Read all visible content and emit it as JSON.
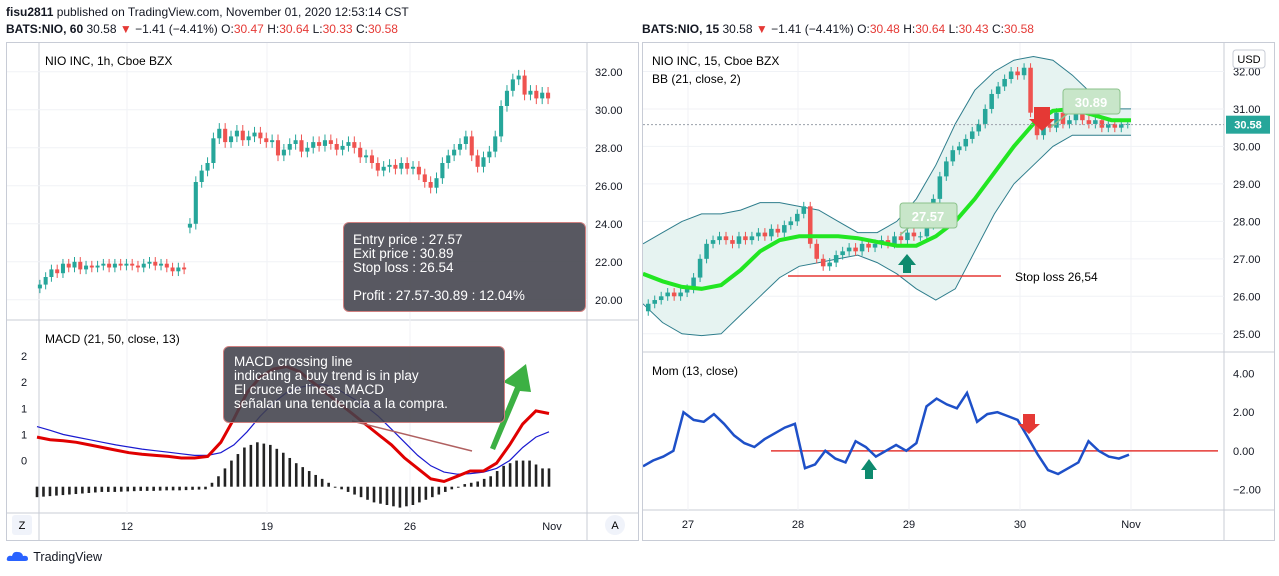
{
  "publish": {
    "user": "fisu2811",
    "text": " published on TradingView.com, November 01, 2020 12:53:14 CST"
  },
  "left": {
    "symbol_line": {
      "sym": "BATS:NIO, 60",
      "last": "30.58",
      "chg": "−1.41 (−4.41%)",
      "o": "30.47",
      "h": "30.64",
      "l": "30.33",
      "c": "30.58"
    },
    "title": "NIO INC, 1h, Cboe BZX",
    "price_axis": [
      "32.00",
      "30.00",
      "28.00",
      "26.00",
      "24.00",
      "22.00",
      "20.00"
    ],
    "macd_title": "MACD (21, 50, close, 13)",
    "macd_axis": [
      "2",
      "2",
      "1",
      "1",
      "0"
    ],
    "time_axis": [
      "12",
      "19",
      "26",
      "Nov"
    ],
    "corner_left": "Z",
    "corner_right": "A",
    "trade_box": {
      "entry": "Entry price : 27.57",
      "exit": "Exit price : 30.89",
      "stop": "Stop loss : 26.54",
      "profit": "Profit : 27.57-30.89 : 12.04%"
    },
    "macd_note": [
      "MACD crossing line",
      "indicating a buy trend is in play",
      "El cruce de lineas MACD",
      "señalan una tendencia a la compra."
    ]
  },
  "right": {
    "symbol_line": {
      "sym": "BATS:NIO, 15",
      "last": "30.58",
      "chg": "−1.41 (−4.41%)",
      "o": "30.48",
      "h": "30.64",
      "l": "30.43",
      "c": "30.58"
    },
    "title": "NIO INC, 15, Cboe BZX",
    "bb_title": "BB (21, close, 2)",
    "currency": "USD",
    "price_axis": [
      "32.00",
      "31.00",
      "30.00",
      "29.00",
      "28.00",
      "27.00",
      "26.00",
      "25.00"
    ],
    "last_price_tag": "30.58",
    "entry_label": "27.57",
    "exit_label": "30.89",
    "stop_label": "Stop loss  26,54",
    "mom_title": "Mom (13, close)",
    "mom_axis": [
      "4.00",
      "2.00",
      "0.00",
      "−2.00"
    ],
    "time_axis": [
      "27",
      "28",
      "29",
      "30",
      "Nov"
    ]
  },
  "footer": {
    "brand": "TradingView"
  },
  "colors": {
    "up": "#26a69a",
    "down": "#ef5350",
    "bb_mid": "#22e622",
    "bb_band": "#2e7d8c",
    "bb_fill": "#e6f3f1",
    "mom": "#1e50c8",
    "macd": "#e00000",
    "signal": "#1a1ad0",
    "stop": "#e53935",
    "label_green": "#c8e6c9",
    "arrow_up": "#0e8a6e",
    "arrow_down": "#e53935",
    "arrow_green": "#3cb043"
  },
  "chart_data": [
    {
      "type": "candlestick",
      "title": "NIO INC, 1h, Cboe BZX",
      "ylim": [
        19.2,
        33.2
      ],
      "x_ticks": [
        "12",
        "19",
        "26",
        "Nov"
      ],
      "closes": [
        20.8,
        21.2,
        21.6,
        21.4,
        21.9,
        21.7,
        22.0,
        21.6,
        21.8,
        21.7,
        21.8,
        21.9,
        21.7,
        21.9,
        21.8,
        21.9,
        21.8,
        21.7,
        21.9,
        22.0,
        21.8,
        21.9,
        21.7,
        21.5,
        21.7,
        21.6,
        24.0,
        26.2,
        26.8,
        27.2,
        28.5,
        29.0,
        28.3,
        28.6,
        28.9,
        28.4,
        28.6,
        28.8,
        28.5,
        28.3,
        28.4,
        27.6,
        27.9,
        28.2,
        28.4,
        27.8,
        28.0,
        28.3,
        28.1,
        28.4,
        28.2,
        27.9,
        28.1,
        28.3,
        28.0,
        27.5,
        27.6,
        27.2,
        26.8,
        27.0,
        27.1,
        26.9,
        27.2,
        26.9,
        27.0,
        26.6,
        26.2,
        25.9,
        26.4,
        27.2,
        27.6,
        27.9,
        28.2,
        28.6,
        27.6,
        27.0,
        27.5,
        27.8,
        28.6,
        30.2,
        31.0,
        31.6,
        31.8,
        30.8,
        31.0,
        30.6,
        30.9,
        30.6
      ],
      "series": [
        {
          "name": "MACD",
          "color": "#e00000",
          "values": [
            0.95,
            0.9,
            0.88,
            0.85,
            0.8,
            0.75,
            0.7,
            0.65,
            0.62,
            0.6,
            0.58,
            0.55,
            0.55,
            0.58,
            0.85,
            1.3,
            1.8,
            2.1,
            2.25,
            2.3,
            2.2,
            2.0,
            1.8,
            1.6,
            1.4,
            1.2,
            1.0,
            0.8,
            0.55,
            0.35,
            0.15,
            0.1,
            0.2,
            0.3,
            0.3,
            0.45,
            0.8,
            1.2,
            1.45,
            1.4
          ]
        },
        {
          "name": "Signal",
          "color": "#1a1ad0",
          "values": [
            1.15,
            1.08,
            1.0,
            0.95,
            0.9,
            0.85,
            0.8,
            0.76,
            0.72,
            0.69,
            0.66,
            0.63,
            0.6,
            0.6,
            0.65,
            0.8,
            1.05,
            1.35,
            1.6,
            1.8,
            1.9,
            1.95,
            1.95,
            1.85,
            1.7,
            1.55,
            1.35,
            1.1,
            0.85,
            0.6,
            0.4,
            0.28,
            0.24,
            0.25,
            0.28,
            0.35,
            0.5,
            0.75,
            0.95,
            1.05
          ]
        },
        {
          "name": "Histogram",
          "values": [
            -0.2,
            -0.18,
            -0.16,
            -0.14,
            -0.12,
            -0.1,
            -0.1,
            -0.09,
            -0.08,
            -0.08,
            -0.07,
            -0.07,
            -0.06,
            -0.05,
            0.2,
            0.5,
            0.75,
            0.85,
            0.8,
            0.65,
            0.45,
            0.3,
            0.15,
            0.0,
            -0.1,
            -0.2,
            -0.3,
            -0.35,
            -0.4,
            -0.35,
            -0.25,
            -0.15,
            -0.05,
            0.05,
            0.1,
            0.2,
            0.4,
            0.5,
            0.5,
            0.35
          ]
        }
      ],
      "macd_ylim": [
        -0.35,
        2.75
      ]
    },
    {
      "type": "candlestick",
      "title": "NIO INC, 15, Cboe BZX",
      "ylim": [
        24.7,
        32.6
      ],
      "x_ticks": [
        "27",
        "28",
        "29",
        "30",
        "Nov"
      ],
      "closes": [
        25.8,
        25.9,
        26.0,
        26.1,
        26.0,
        26.1,
        26.2,
        26.5,
        27.0,
        27.4,
        27.5,
        27.6,
        27.5,
        27.4,
        27.6,
        27.5,
        27.6,
        27.7,
        27.6,
        27.8,
        27.7,
        27.9,
        28.0,
        28.2,
        28.4,
        27.4,
        27.0,
        26.8,
        26.9,
        27.1,
        27.2,
        27.3,
        27.2,
        27.4,
        27.3,
        27.4,
        27.5,
        27.4,
        27.6,
        27.5,
        27.7,
        27.6,
        27.6,
        27.9,
        28.6,
        29.2,
        29.6,
        29.9,
        30.0,
        30.2,
        30.4,
        30.6,
        31.0,
        31.4,
        31.6,
        31.8,
        32.0,
        31.9,
        32.1,
        30.9,
        30.3,
        30.6,
        30.5,
        30.9,
        30.6,
        30.7,
        30.9,
        30.7,
        30.6,
        30.7,
        30.5,
        30.6,
        30.5,
        30.6,
        30.6
      ],
      "series": [
        {
          "name": "BB mid",
          "values": [
            26.6,
            26.4,
            26.25,
            26.2,
            26.3,
            26.7,
            27.2,
            27.5,
            27.6,
            27.6,
            27.6,
            27.55,
            27.45,
            27.35,
            27.35,
            27.6,
            28.0,
            28.6,
            29.3,
            30.0,
            30.6,
            30.95,
            31.0,
            30.85,
            30.7,
            30.7
          ]
        },
        {
          "name": "BB upper",
          "values": [
            27.4,
            27.7,
            28.0,
            28.2,
            28.2,
            28.3,
            28.5,
            28.5,
            28.4,
            28.3,
            28.0,
            27.7,
            27.7,
            28.0,
            28.6,
            29.5,
            30.6,
            31.5,
            32.0,
            32.3,
            32.4,
            32.3,
            31.9,
            31.4,
            31.0,
            31.0
          ]
        },
        {
          "name": "BB lower",
          "values": [
            25.8,
            25.3,
            25.0,
            24.95,
            25.0,
            25.5,
            26.0,
            26.5,
            26.8,
            26.9,
            27.0,
            27.1,
            26.9,
            26.6,
            26.2,
            25.9,
            26.2,
            27.2,
            28.2,
            29.0,
            29.5,
            30.0,
            30.3,
            30.3,
            30.3,
            30.3
          ]
        },
        {
          "name": "Mom",
          "values": [
            -0.8,
            -0.5,
            -0.3,
            0.0,
            2.0,
            1.6,
            1.5,
            1.9,
            1.4,
            0.8,
            0.4,
            0.2,
            0.6,
            0.9,
            1.2,
            1.4,
            -0.9,
            -0.7,
            0.0,
            -0.4,
            -0.6,
            0.5,
            0.2,
            -0.3,
            0.0,
            0.3,
            0.0,
            0.4,
            2.3,
            2.7,
            2.4,
            2.2,
            3.0,
            1.5,
            1.9,
            2.0,
            1.8,
            1.6,
            0.7,
            -0.2,
            -1.0,
            -1.2,
            -0.9,
            -0.6,
            0.5,
            0.0,
            -0.3,
            -0.4,
            -0.2
          ]
        }
      ],
      "mom_ylim": [
        -2.7,
        4.7
      ],
      "annotations": {
        "entry": 27.57,
        "exit": 30.89,
        "stop_loss": 26.54,
        "last": 30.58
      }
    }
  ]
}
